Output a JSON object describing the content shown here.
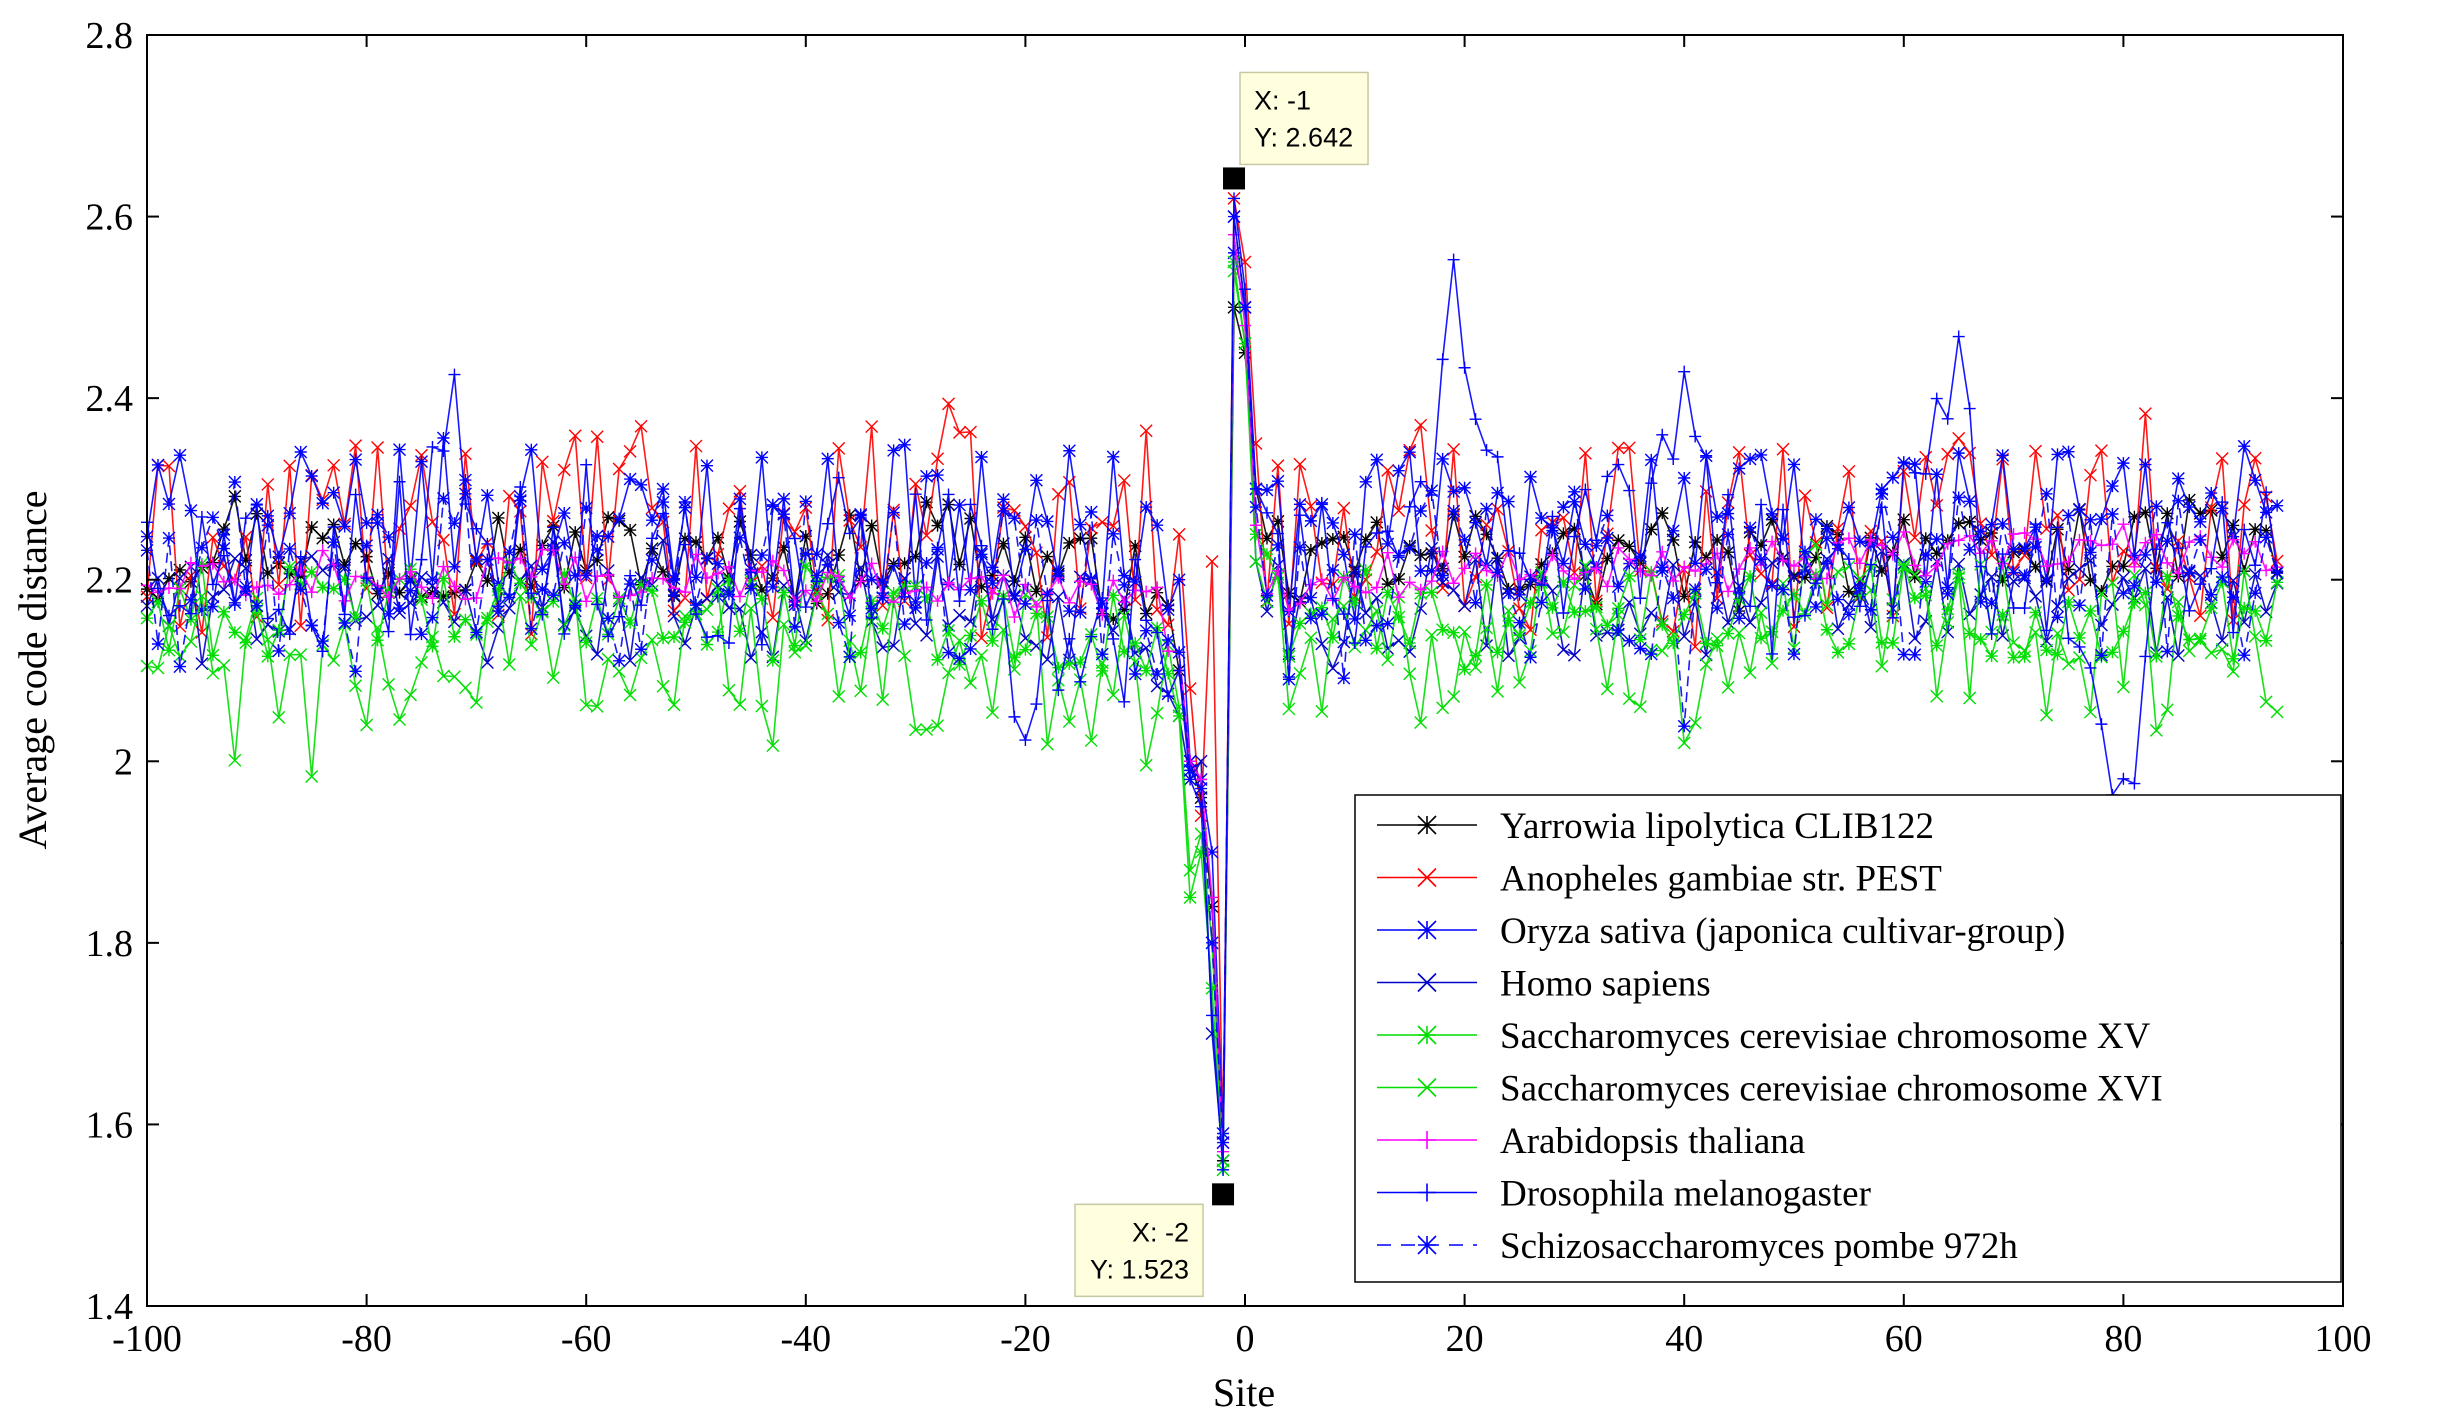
{
  "chart_data": {
    "type": "line",
    "title": "",
    "xlabel": "Site",
    "ylabel": "Average code distance",
    "xlim": [
      -100,
      100
    ],
    "ylim": [
      1.4,
      2.8
    ],
    "xticks": [
      -100,
      -80,
      -60,
      -40,
      -20,
      0,
      20,
      40,
      60,
      80,
      100
    ],
    "xtick_labels": [
      "-100",
      "-80",
      "-60",
      "-40",
      "-20",
      "0",
      "20",
      "40",
      "60",
      "80",
      "100"
    ],
    "yticks": [
      1.4,
      1.6,
      1.8,
      2.0,
      2.2,
      2.4,
      2.6,
      2.8
    ],
    "ytick_labels": [
      "1.4",
      "1.6",
      "1.8",
      "2",
      "2.2",
      "2.4",
      "2.6",
      "2.8"
    ],
    "x_range": [
      -100,
      94
    ],
    "grid": false,
    "legend_position": "bottom-right",
    "series": [
      {
        "name": "Yarrowia lipolytica CLIB122",
        "color": "#000000",
        "marker": "asterisk",
        "dashed": false,
        "spread": 0.045,
        "x": [
          -100,
          -96,
          -92,
          -88,
          -84,
          -80,
          -76,
          -72,
          -68,
          -64,
          -60,
          -56,
          -52,
          -48,
          -44,
          -40,
          -36,
          -32,
          -28,
          -24,
          -20,
          -16,
          -12,
          -8,
          -6,
          -5,
          -4,
          -3,
          -2,
          -1,
          0,
          1,
          2,
          4,
          8,
          12,
          16,
          20,
          24,
          28,
          32,
          36,
          40,
          44,
          48,
          52,
          56,
          60,
          64,
          68,
          72,
          76,
          80,
          84,
          88,
          92,
          94
        ],
        "y": [
          2.21,
          2.24,
          2.26,
          2.23,
          2.24,
          2.22,
          2.21,
          2.23,
          2.24,
          2.22,
          2.23,
          2.24,
          2.21,
          2.22,
          2.23,
          2.21,
          2.23,
          2.24,
          2.26,
          2.23,
          2.22,
          2.21,
          2.2,
          2.19,
          2.1,
          2.0,
          1.96,
          1.84,
          1.56,
          2.5,
          2.45,
          2.3,
          2.24,
          2.22,
          2.2,
          2.23,
          2.21,
          2.24,
          2.22,
          2.23,
          2.21,
          2.24,
          2.22,
          2.2,
          2.23,
          2.24,
          2.22,
          2.25,
          2.23,
          2.21,
          2.22,
          2.24,
          2.22,
          2.24,
          2.26,
          2.22,
          2.23
        ]
      },
      {
        "name": "Anopheles gambiae str. PEST",
        "color": "#ff0000",
        "marker": "x",
        "dashed": false,
        "spread": 0.11,
        "x": [
          -100,
          -96,
          -92,
          -88,
          -84,
          -80,
          -76,
          -72,
          -68,
          -64,
          -60,
          -56,
          -52,
          -48,
          -44,
          -40,
          -36,
          -32,
          -28,
          -24,
          -20,
          -16,
          -12,
          -8,
          -6,
          -5,
          -4,
          -3,
          -2,
          -1,
          0,
          1,
          2,
          4,
          8,
          12,
          16,
          20,
          24,
          28,
          32,
          36,
          40,
          44,
          48,
          52,
          56,
          60,
          64,
          68,
          72,
          76,
          80,
          84,
          88,
          92,
          94
        ],
        "y": [
          2.22,
          2.24,
          2.2,
          2.23,
          2.26,
          2.28,
          2.22,
          2.25,
          2.27,
          2.24,
          2.26,
          2.28,
          2.23,
          2.25,
          2.22,
          2.24,
          2.27,
          2.26,
          2.3,
          2.24,
          2.23,
          2.22,
          2.26,
          2.27,
          2.25,
          2.08,
          1.94,
          2.22,
          1.58,
          2.62,
          2.55,
          2.35,
          2.25,
          2.24,
          2.23,
          2.25,
          2.27,
          2.28,
          2.24,
          2.26,
          2.25,
          2.27,
          2.22,
          2.24,
          2.26,
          2.25,
          2.24,
          2.27,
          2.26,
          2.28,
          2.35,
          2.26,
          2.3,
          2.27,
          2.25,
          2.26,
          2.24
        ]
      },
      {
        "name": "Oryza sativa (japonica cultivar-group)",
        "color": "#0000ff",
        "marker": "asterisk",
        "dashed": false,
        "spread": 0.09,
        "x": [
          -100,
          -96,
          -92,
          -88,
          -84,
          -80,
          -76,
          -72,
          -68,
          -64,
          -60,
          -56,
          -52,
          -48,
          -44,
          -40,
          -36,
          -32,
          -28,
          -24,
          -20,
          -16,
          -12,
          -8,
          -6,
          -5,
          -4,
          -3,
          -2,
          -1,
          0,
          1,
          2,
          4,
          8,
          12,
          16,
          20,
          24,
          28,
          32,
          36,
          40,
          44,
          48,
          52,
          56,
          60,
          64,
          68,
          72,
          76,
          80,
          84,
          88,
          92,
          94
        ],
        "y": [
          2.27,
          2.25,
          2.24,
          2.26,
          2.25,
          2.24,
          2.26,
          2.27,
          2.25,
          2.28,
          2.26,
          2.24,
          2.25,
          2.27,
          2.26,
          2.24,
          2.25,
          2.27,
          2.26,
          2.25,
          2.24,
          2.26,
          2.25,
          2.24,
          2.2,
          2.0,
          1.98,
          1.9,
          1.59,
          2.56,
          2.5,
          2.3,
          2.25,
          2.24,
          2.23,
          2.25,
          2.26,
          2.27,
          2.24,
          2.25,
          2.26,
          2.28,
          2.25,
          2.26,
          2.27,
          2.25,
          2.26,
          2.28,
          2.27,
          2.25,
          2.26,
          2.27,
          2.25,
          2.26,
          2.28,
          2.26,
          2.27
        ]
      },
      {
        "name": "Homo sapiens",
        "color": "#0000c8",
        "marker": "x",
        "dashed": false,
        "spread": 0.06,
        "x": [
          -100,
          -96,
          -92,
          -88,
          -84,
          -80,
          -76,
          -72,
          -68,
          -64,
          -60,
          -56,
          -52,
          -48,
          -44,
          -40,
          -36,
          -32,
          -28,
          -24,
          -20,
          -16,
          -12,
          -8,
          -6,
          -5,
          -4,
          -3,
          -2,
          -1,
          0,
          1,
          2,
          4,
          8,
          12,
          16,
          20,
          24,
          28,
          32,
          36,
          40,
          44,
          48,
          52,
          56,
          60,
          64,
          68,
          72,
          76,
          80,
          84,
          88,
          92,
          94
        ],
        "y": [
          2.18,
          2.16,
          2.19,
          2.17,
          2.18,
          2.2,
          2.17,
          2.18,
          2.16,
          2.19,
          2.18,
          2.17,
          2.19,
          2.18,
          2.16,
          2.17,
          2.18,
          2.16,
          2.17,
          2.18,
          2.16,
          2.17,
          2.15,
          2.12,
          2.05,
          1.98,
          2.0,
          1.7,
          1.56,
          2.6,
          2.5,
          2.22,
          2.18,
          2.17,
          2.16,
          2.18,
          2.17,
          2.19,
          2.17,
          2.18,
          2.16,
          2.18,
          2.17,
          2.16,
          2.18,
          2.17,
          2.19,
          2.18,
          2.17,
          2.16,
          2.18,
          2.17,
          2.18,
          2.16,
          2.17,
          2.18,
          2.17
        ]
      },
      {
        "name": "Saccharomyces cerevisiae chromosome XV",
        "color": "#00dd00",
        "marker": "asterisk",
        "dashed": false,
        "spread": 0.05,
        "x": [
          -100,
          -96,
          -92,
          -88,
          -84,
          -80,
          -76,
          -72,
          -68,
          -64,
          -60,
          -56,
          -52,
          -48,
          -44,
          -40,
          -36,
          -32,
          -28,
          -24,
          -20,
          -16,
          -12,
          -8,
          -6,
          -5,
          -4,
          -3,
          -2,
          -1,
          0,
          1,
          2,
          4,
          8,
          12,
          16,
          20,
          24,
          28,
          32,
          36,
          40,
          44,
          48,
          52,
          56,
          60,
          64,
          68,
          72,
          76,
          80,
          84,
          88,
          92,
          94
        ],
        "y": [
          2.16,
          2.18,
          2.15,
          2.17,
          2.16,
          2.18,
          2.17,
          2.15,
          2.18,
          2.16,
          2.17,
          2.19,
          2.16,
          2.17,
          2.15,
          2.17,
          2.16,
          2.18,
          2.15,
          2.14,
          2.16,
          2.15,
          2.14,
          2.12,
          2.05,
          1.85,
          1.9,
          1.75,
          1.55,
          2.55,
          2.46,
          2.25,
          2.18,
          2.16,
          2.15,
          2.17,
          2.16,
          2.15,
          2.17,
          2.16,
          2.18,
          2.17,
          2.15,
          2.16,
          2.18,
          2.17,
          2.16,
          2.18,
          2.17,
          2.15,
          2.16,
          2.17,
          2.15,
          2.16,
          2.17,
          2.15,
          2.16
        ]
      },
      {
        "name": "Saccharomyces cerevisiae chromosome XVI",
        "color": "#00dd00",
        "marker": "x",
        "dashed": false,
        "spread": 0.09,
        "x": [
          -100,
          -96,
          -92,
          -88,
          -84,
          -80,
          -76,
          -72,
          -68,
          -64,
          -60,
          -56,
          -52,
          -48,
          -44,
          -40,
          -36,
          -32,
          -28,
          -24,
          -20,
          -16,
          -12,
          -8,
          -6,
          -5,
          -4,
          -3,
          -2,
          -1,
          0,
          1,
          2,
          4,
          8,
          12,
          16,
          20,
          24,
          28,
          32,
          36,
          40,
          44,
          48,
          52,
          56,
          60,
          64,
          68,
          72,
          76,
          80,
          84,
          88,
          92,
          94
        ],
        "y": [
          2.1,
          2.12,
          2.08,
          2.1,
          2.06,
          2.09,
          2.11,
          2.1,
          2.13,
          2.12,
          2.14,
          2.12,
          2.1,
          2.13,
          2.11,
          2.09,
          2.12,
          2.11,
          2.08,
          2.06,
          2.1,
          2.11,
          2.09,
          2.08,
          2.06,
          1.88,
          1.92,
          1.8,
          1.56,
          2.54,
          2.46,
          2.22,
          2.16,
          2.14,
          2.12,
          2.15,
          2.13,
          2.11,
          2.14,
          2.12,
          2.15,
          2.13,
          2.11,
          2.14,
          2.12,
          2.15,
          2.13,
          2.14,
          2.12,
          2.15,
          2.13,
          2.12,
          2.14,
          2.11,
          2.13,
          2.12,
          2.14
        ]
      },
      {
        "name": "Arabidopsis thaliana",
        "color": "#ff00ff",
        "marker": "plus",
        "dashed": false,
        "spread": 0.025,
        "x": [
          -100,
          -96,
          -92,
          -88,
          -84,
          -80,
          -76,
          -72,
          -68,
          -64,
          -60,
          -56,
          -52,
          -48,
          -44,
          -40,
          -36,
          -32,
          -28,
          -24,
          -20,
          -16,
          -12,
          -8,
          -6,
          -5,
          -4,
          -3,
          -2,
          -1,
          0,
          1,
          2,
          4,
          8,
          12,
          16,
          20,
          24,
          28,
          32,
          36,
          40,
          44,
          48,
          52,
          56,
          60,
          64,
          68,
          72,
          76,
          80,
          84,
          88,
          92,
          94
        ],
        "y": [
          2.19,
          2.2,
          2.19,
          2.2,
          2.21,
          2.19,
          2.2,
          2.19,
          2.2,
          2.21,
          2.2,
          2.19,
          2.2,
          2.21,
          2.2,
          2.19,
          2.2,
          2.19,
          2.18,
          2.19,
          2.18,
          2.19,
          2.18,
          2.17,
          2.12,
          2.0,
          1.98,
          1.85,
          1.57,
          2.58,
          2.48,
          2.26,
          2.2,
          2.19,
          2.2,
          2.21,
          2.2,
          2.22,
          2.21,
          2.22,
          2.21,
          2.23,
          2.22,
          2.21,
          2.23,
          2.22,
          2.24,
          2.23,
          2.22,
          2.23,
          2.24,
          2.23,
          2.24,
          2.22,
          2.23,
          2.24,
          2.23
        ]
      },
      {
        "name": "Drosophila melanogaster",
        "color": "#0000ff",
        "marker": "plus",
        "dashed": false,
        "spread": 0.09,
        "x": [
          -100,
          -96,
          -92,
          -88,
          -84,
          -80,
          -76,
          -72,
          -68,
          -64,
          -60,
          -56,
          -52,
          -48,
          -44,
          -40,
          -36,
          -32,
          -28,
          -24,
          -20,
          -16,
          -12,
          -8,
          -6,
          -5,
          -4,
          -3,
          -2,
          -1,
          0,
          1,
          2,
          4,
          8,
          12,
          16,
          20,
          24,
          28,
          32,
          36,
          40,
          44,
          48,
          52,
          56,
          60,
          64,
          68,
          72,
          76,
          80,
          84,
          88,
          92,
          94
        ],
        "y": [
          2.24,
          2.22,
          2.2,
          2.23,
          2.21,
          2.24,
          2.22,
          2.4,
          2.23,
          2.22,
          2.24,
          2.21,
          2.23,
          2.22,
          2.2,
          2.22,
          2.23,
          2.21,
          2.22,
          2.2,
          2.0,
          2.18,
          2.16,
          2.14,
          2.1,
          1.98,
          1.95,
          1.72,
          1.55,
          2.62,
          2.52,
          2.3,
          2.22,
          2.18,
          2.2,
          2.22,
          2.3,
          2.52,
          2.28,
          2.24,
          2.22,
          2.26,
          2.38,
          2.22,
          2.2,
          2.24,
          2.22,
          2.24,
          2.45,
          2.22,
          2.24,
          2.2,
          1.95,
          2.22,
          2.24,
          2.22,
          2.24
        ]
      },
      {
        "name": "Schizosaccharomyces pombe 972h",
        "color": "#0000ff",
        "marker": "asterisk",
        "dashed": true,
        "spread": 0.09,
        "x": [
          -100,
          -96,
          -92,
          -88,
          -84,
          -80,
          -76,
          -72,
          -68,
          -64,
          -60,
          -56,
          -52,
          -48,
          -44,
          -40,
          -36,
          -32,
          -28,
          -24,
          -20,
          -16,
          -12,
          -8,
          -6,
          -5,
          -4,
          -3,
          -2,
          -1,
          0,
          1,
          2,
          4,
          8,
          12,
          16,
          20,
          24,
          28,
          32,
          36,
          40,
          44,
          48,
          52,
          56,
          60,
          64,
          68,
          72,
          76,
          80,
          84,
          88,
          92,
          94
        ],
        "y": [
          2.2,
          2.18,
          2.22,
          2.19,
          2.21,
          2.18,
          2.2,
          2.22,
          2.19,
          2.21,
          2.2,
          2.18,
          2.21,
          2.19,
          2.22,
          2.2,
          2.18,
          2.21,
          2.19,
          2.2,
          2.18,
          2.2,
          2.19,
          2.17,
          2.12,
          1.99,
          1.97,
          1.8,
          1.58,
          2.6,
          2.5,
          2.28,
          2.2,
          2.18,
          2.17,
          2.2,
          2.22,
          2.21,
          2.18,
          2.22,
          2.2,
          2.21,
          2.1,
          2.2,
          2.22,
          2.19,
          2.21,
          2.2,
          2.22,
          2.2,
          2.21,
          2.19,
          2.2,
          2.21,
          2.22,
          2.2,
          2.21
        ]
      }
    ],
    "annotations": [
      {
        "x": -1,
        "y": 2.642,
        "line1": "X: -1",
        "line2": "Y: 2.642",
        "box_side": "right"
      },
      {
        "x": -2,
        "y": 1.523,
        "line1": "X: -2",
        "line2": "Y: 1.523",
        "box_side": "left"
      }
    ]
  }
}
